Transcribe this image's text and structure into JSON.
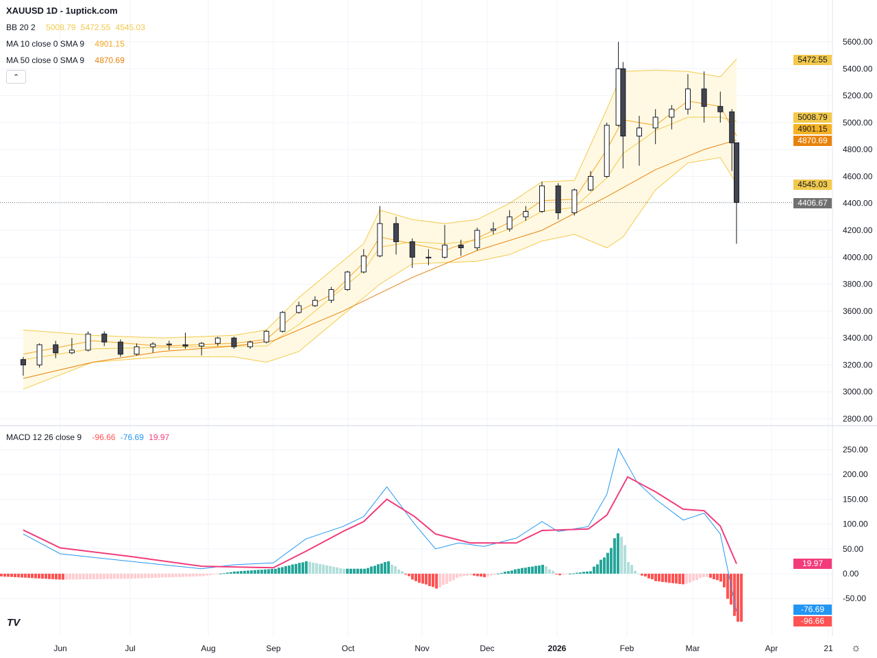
{
  "header": {
    "title": "XAUUSD 1D - 1uptick.com"
  },
  "legend": {
    "bb": {
      "label": "BB 20 2",
      "basis": "5008.79",
      "upper": "5472.55",
      "lower": "4545.03"
    },
    "ma10": {
      "label": "MA 10 close 0 SMA 9",
      "value": "4901.15"
    },
    "ma50": {
      "label": "MA 50 close 0 SMA 9",
      "value": "4870.69"
    },
    "macd": {
      "label": "MACD 12 26 close 9",
      "hist": "-96.66",
      "macd": "-76.69",
      "signal": "19.97"
    },
    "collapse_icon": "chevron-up-icon"
  },
  "badges": {
    "bb_upper": "5472.55",
    "bb_basis": "5008.79",
    "ma10": "4901.15",
    "ma50": "4870.69",
    "bb_lower": "4545.03",
    "last_price": "4406.67",
    "signal": "19.97",
    "macd": "-76.69",
    "hist": "-96.66"
  },
  "colors": {
    "up": "#ffffff",
    "down": "#434651",
    "bb": "#f2c94c",
    "bb_fill": "#fff8dc",
    "ma10": "#f5a623",
    "ma50": "#e8820c",
    "macd": "#2196f3",
    "signal": "#f23b7a",
    "hist_up": "#26a69a",
    "hist_up_light": "#b2dfdb",
    "hist_down": "#ff5252",
    "hist_down_light": "#ffcdd2"
  },
  "footer": {
    "logo": "TV",
    "settings_icon": "gear-icon"
  },
  "chart_data": [
    {
      "type": "candlestick",
      "price_ticks": [
        "5600.00",
        "5400.00",
        "5200.00",
        "5000.00",
        "4800.00",
        "4600.00",
        "4400.00",
        "4200.00",
        "4000.00",
        "3800.00",
        "3600.00",
        "3400.00",
        "3200.00",
        "3000.00",
        "2800.00"
      ],
      "ylim": [
        2800,
        5600
      ],
      "time_ticks": [
        "Jun",
        "Jul",
        "Aug",
        "Sep",
        "Oct",
        "Nov",
        "Dec",
        "2026",
        "Feb",
        "Mar",
        "Apr",
        "21"
      ],
      "grid": true,
      "candles": [
        [
          "2025-05-16",
          3240,
          3260,
          3120,
          3200
        ],
        [
          "2025-05-23",
          3200,
          3360,
          3180,
          3350
        ],
        [
          "2025-05-30",
          3350,
          3380,
          3250,
          3290
        ],
        [
          "2025-06-06",
          3290,
          3400,
          3280,
          3310
        ],
        [
          "2025-06-13",
          3310,
          3450,
          3300,
          3430
        ],
        [
          "2025-06-20",
          3430,
          3450,
          3340,
          3370
        ],
        [
          "2025-06-27",
          3370,
          3390,
          3260,
          3280
        ],
        [
          "2025-07-04",
          3280,
          3360,
          3270,
          3335
        ],
        [
          "2025-07-11",
          3335,
          3370,
          3290,
          3355
        ],
        [
          "2025-07-18",
          3355,
          3380,
          3310,
          3350
        ],
        [
          "2025-07-25",
          3350,
          3440,
          3320,
          3340
        ],
        [
          "2025-08-01",
          3340,
          3370,
          3270,
          3360
        ],
        [
          "2025-08-08",
          3360,
          3410,
          3340,
          3400
        ],
        [
          "2025-08-15",
          3400,
          3410,
          3320,
          3335
        ],
        [
          "2025-08-22",
          3335,
          3380,
          3320,
          3370
        ],
        [
          "2025-08-29",
          3370,
          3460,
          3360,
          3450
        ],
        [
          "2025-09-05",
          3450,
          3600,
          3440,
          3590
        ],
        [
          "2025-09-12",
          3590,
          3670,
          3580,
          3640
        ],
        [
          "2025-09-19",
          3640,
          3710,
          3630,
          3680
        ],
        [
          "2025-09-26",
          3680,
          3780,
          3660,
          3760
        ],
        [
          "2025-10-03",
          3760,
          3900,
          3750,
          3890
        ],
        [
          "2025-10-10",
          3890,
          4060,
          3880,
          4010
        ],
        [
          "2025-10-17",
          4010,
          4380,
          4000,
          4250
        ],
        [
          "2025-10-24",
          4250,
          4300,
          4020,
          4115
        ],
        [
          "2025-10-31",
          4115,
          4140,
          3920,
          4000
        ],
        [
          "2025-11-07",
          4000,
          4060,
          3940,
          4000
        ],
        [
          "2025-11-14",
          4000,
          4240,
          3990,
          4090
        ],
        [
          "2025-11-21",
          4090,
          4130,
          4010,
          4070
        ],
        [
          "2025-11-28",
          4070,
          4220,
          4050,
          4200
        ],
        [
          "2025-12-05",
          4200,
          4260,
          4170,
          4210
        ],
        [
          "2025-12-12",
          4210,
          4350,
          4190,
          4300
        ],
        [
          "2025-12-19",
          4300,
          4380,
          4270,
          4340
        ],
        [
          "2025-12-26",
          4340,
          4560,
          4330,
          4530
        ],
        [
          "2026-01-02",
          4530,
          4550,
          4280,
          4330
        ],
        [
          "2026-01-09",
          4330,
          4510,
          4310,
          4500
        ],
        [
          "2026-01-16",
          4500,
          4640,
          4490,
          4600
        ],
        [
          "2026-01-23",
          4600,
          5000,
          4590,
          4980
        ],
        [
          "2026-01-28",
          4980,
          5600,
          4970,
          5400
        ],
        [
          "2026-01-30",
          5400,
          5450,
          4660,
          4900
        ],
        [
          "2026-02-06",
          4900,
          5050,
          4680,
          4960
        ],
        [
          "2026-02-13",
          4960,
          5100,
          4840,
          5040
        ],
        [
          "2026-02-20",
          5040,
          5130,
          4950,
          5100
        ],
        [
          "2026-02-27",
          5100,
          5360,
          5060,
          5250
        ],
        [
          "2026-03-06",
          5250,
          5380,
          5000,
          5120
        ],
        [
          "2026-03-13",
          5120,
          5230,
          5000,
          5080
        ],
        [
          "2026-03-18",
          5080,
          5100,
          4640,
          4850
        ],
        [
          "2026-03-20",
          4850,
          4850,
          4100,
          4407
        ]
      ],
      "bb_upper": [
        [
          "2025-05-16",
          3460
        ],
        [
          "2025-06-15",
          3420
        ],
        [
          "2025-07-15",
          3400
        ],
        [
          "2025-08-15",
          3420
        ],
        [
          "2025-08-29",
          3460
        ],
        [
          "2025-09-12",
          3700
        ],
        [
          "2025-09-26",
          3900
        ],
        [
          "2025-10-10",
          4100
        ],
        [
          "2025-10-17",
          4350
        ],
        [
          "2025-10-31",
          4280
        ],
        [
          "2025-11-14",
          4250
        ],
        [
          "2025-11-28",
          4280
        ],
        [
          "2025-12-12",
          4400
        ],
        [
          "2025-12-26",
          4560
        ],
        [
          "2026-01-09",
          4570
        ],
        [
          "2026-01-23",
          5100
        ],
        [
          "2026-01-30",
          5380
        ],
        [
          "2026-02-13",
          5390
        ],
        [
          "2026-02-27",
          5380
        ],
        [
          "2026-03-13",
          5340
        ],
        [
          "2026-03-20",
          5472.55
        ]
      ],
      "bb_lower": [
        [
          "2025-05-16",
          3020
        ],
        [
          "2025-06-15",
          3220
        ],
        [
          "2025-07-15",
          3260
        ],
        [
          "2025-08-15",
          3260
        ],
        [
          "2025-08-29",
          3220
        ],
        [
          "2025-09-12",
          3300
        ],
        [
          "2025-09-26",
          3500
        ],
        [
          "2025-10-10",
          3700
        ],
        [
          "2025-10-17",
          3800
        ],
        [
          "2025-10-31",
          3950
        ],
        [
          "2025-11-14",
          3960
        ],
        [
          "2025-11-28",
          3970
        ],
        [
          "2025-12-12",
          4020
        ],
        [
          "2025-12-26",
          4120
        ],
        [
          "2026-01-09",
          4170
        ],
        [
          "2026-01-23",
          4070
        ],
        [
          "2026-01-30",
          4150
        ],
        [
          "2026-02-13",
          4500
        ],
        [
          "2026-02-27",
          4700
        ],
        [
          "2026-03-13",
          4740
        ],
        [
          "2026-03-20",
          4545.03
        ]
      ],
      "bb_basis": [
        [
          "2025-05-16",
          3240
        ],
        [
          "2025-06-15",
          3320
        ],
        [
          "2025-07-15",
          3330
        ],
        [
          "2025-08-15",
          3340
        ],
        [
          "2025-08-29",
          3340
        ],
        [
          "2025-09-12",
          3500
        ],
        [
          "2025-09-26",
          3700
        ],
        [
          "2025-10-10",
          3900
        ],
        [
          "2025-10-17",
          4075
        ],
        [
          "2025-10-31",
          4115
        ],
        [
          "2025-11-14",
          4100
        ],
        [
          "2025-11-28",
          4125
        ],
        [
          "2025-12-12",
          4210
        ],
        [
          "2025-12-26",
          4340
        ],
        [
          "2026-01-09",
          4370
        ],
        [
          "2026-01-23",
          4590
        ],
        [
          "2026-01-30",
          4770
        ],
        [
          "2026-02-13",
          4940
        ],
        [
          "2026-02-27",
          5040
        ],
        [
          "2026-03-13",
          5040
        ],
        [
          "2026-03-20",
          5008.79
        ]
      ],
      "ma10": [
        [
          "2025-05-16",
          3280
        ],
        [
          "2025-06-15",
          3380
        ],
        [
          "2025-07-15",
          3340
        ],
        [
          "2025-08-15",
          3360
        ],
        [
          "2025-08-29",
          3390
        ],
        [
          "2025-09-12",
          3600
        ],
        [
          "2025-09-26",
          3720
        ],
        [
          "2025-10-10",
          3960
        ],
        [
          "2025-10-17",
          4150
        ],
        [
          "2025-10-31",
          4100
        ],
        [
          "2025-11-14",
          4050
        ],
        [
          "2025-11-28",
          4140
        ],
        [
          "2025-12-12",
          4260
        ],
        [
          "2025-12-26",
          4420
        ],
        [
          "2026-01-09",
          4430
        ],
        [
          "2026-01-23",
          4800
        ],
        [
          "2026-01-30",
          5020
        ],
        [
          "2026-02-13",
          4980
        ],
        [
          "2026-02-27",
          5160
        ],
        [
          "2026-03-13",
          5120
        ],
        [
          "2026-03-20",
          4901.15
        ]
      ],
      "ma50": [
        [
          "2025-05-16",
          3100
        ],
        [
          "2025-06-15",
          3220
        ],
        [
          "2025-07-15",
          3300
        ],
        [
          "2025-08-15",
          3340
        ],
        [
          "2025-09-01",
          3380
        ],
        [
          "2025-10-01",
          3600
        ],
        [
          "2025-10-31",
          3850
        ],
        [
          "2025-11-28",
          4050
        ],
        [
          "2025-12-26",
          4200
        ],
        [
          "2026-01-23",
          4450
        ],
        [
          "2026-02-13",
          4650
        ],
        [
          "2026-03-06",
          4800
        ],
        [
          "2026-03-20",
          4870.69
        ]
      ]
    },
    {
      "type": "line",
      "title": "MACD 12 26 close 9",
      "ylim": [
        -100,
        260
      ],
      "ticks": [
        "250.00",
        "200.00",
        "150.00",
        "100.00",
        "50.00",
        "0.00",
        "-50.00"
      ],
      "macd": [
        [
          "2025-05-16",
          80
        ],
        [
          "2025-06-01",
          40
        ],
        [
          "2025-07-01",
          25
        ],
        [
          "2025-08-01",
          10
        ],
        [
          "2025-08-15",
          18
        ],
        [
          "2025-09-01",
          22
        ],
        [
          "2025-09-15",
          70
        ],
        [
          "2025-10-01",
          95
        ],
        [
          "2025-10-10",
          115
        ],
        [
          "2025-10-20",
          175
        ],
        [
          "2025-11-01",
          100
        ],
        [
          "2025-11-10",
          50
        ],
        [
          "2025-11-20",
          62
        ],
        [
          "2025-12-01",
          55
        ],
        [
          "2025-12-15",
          72
        ],
        [
          "2025-12-26",
          105
        ],
        [
          "2026-01-02",
          85
        ],
        [
          "2026-01-15",
          95
        ],
        [
          "2026-01-23",
          160
        ],
        [
          "2026-01-28",
          252
        ],
        [
          "2026-02-05",
          185
        ],
        [
          "2026-02-13",
          150
        ],
        [
          "2026-02-25",
          108
        ],
        [
          "2026-03-06",
          122
        ],
        [
          "2026-03-13",
          80
        ],
        [
          "2026-03-20",
          -76.69
        ]
      ],
      "signal": [
        [
          "2025-05-16",
          88
        ],
        [
          "2025-06-01",
          52
        ],
        [
          "2025-07-01",
          35
        ],
        [
          "2025-08-01",
          15
        ],
        [
          "2025-09-01",
          12
        ],
        [
          "2025-09-15",
          45
        ],
        [
          "2025-10-01",
          85
        ],
        [
          "2025-10-10",
          105
        ],
        [
          "2025-10-20",
          150
        ],
        [
          "2025-11-01",
          115
        ],
        [
          "2025-11-10",
          80
        ],
        [
          "2025-11-25",
          62
        ],
        [
          "2025-12-15",
          62
        ],
        [
          "2025-12-26",
          87
        ],
        [
          "2026-01-15",
          90
        ],
        [
          "2026-01-23",
          118
        ],
        [
          "2026-02-01",
          195
        ],
        [
          "2026-02-13",
          165
        ],
        [
          "2026-02-25",
          130
        ],
        [
          "2026-03-06",
          127
        ],
        [
          "2026-03-13",
          96
        ],
        [
          "2026-03-20",
          19.97
        ]
      ],
      "histogram_last": -96.66
    }
  ]
}
